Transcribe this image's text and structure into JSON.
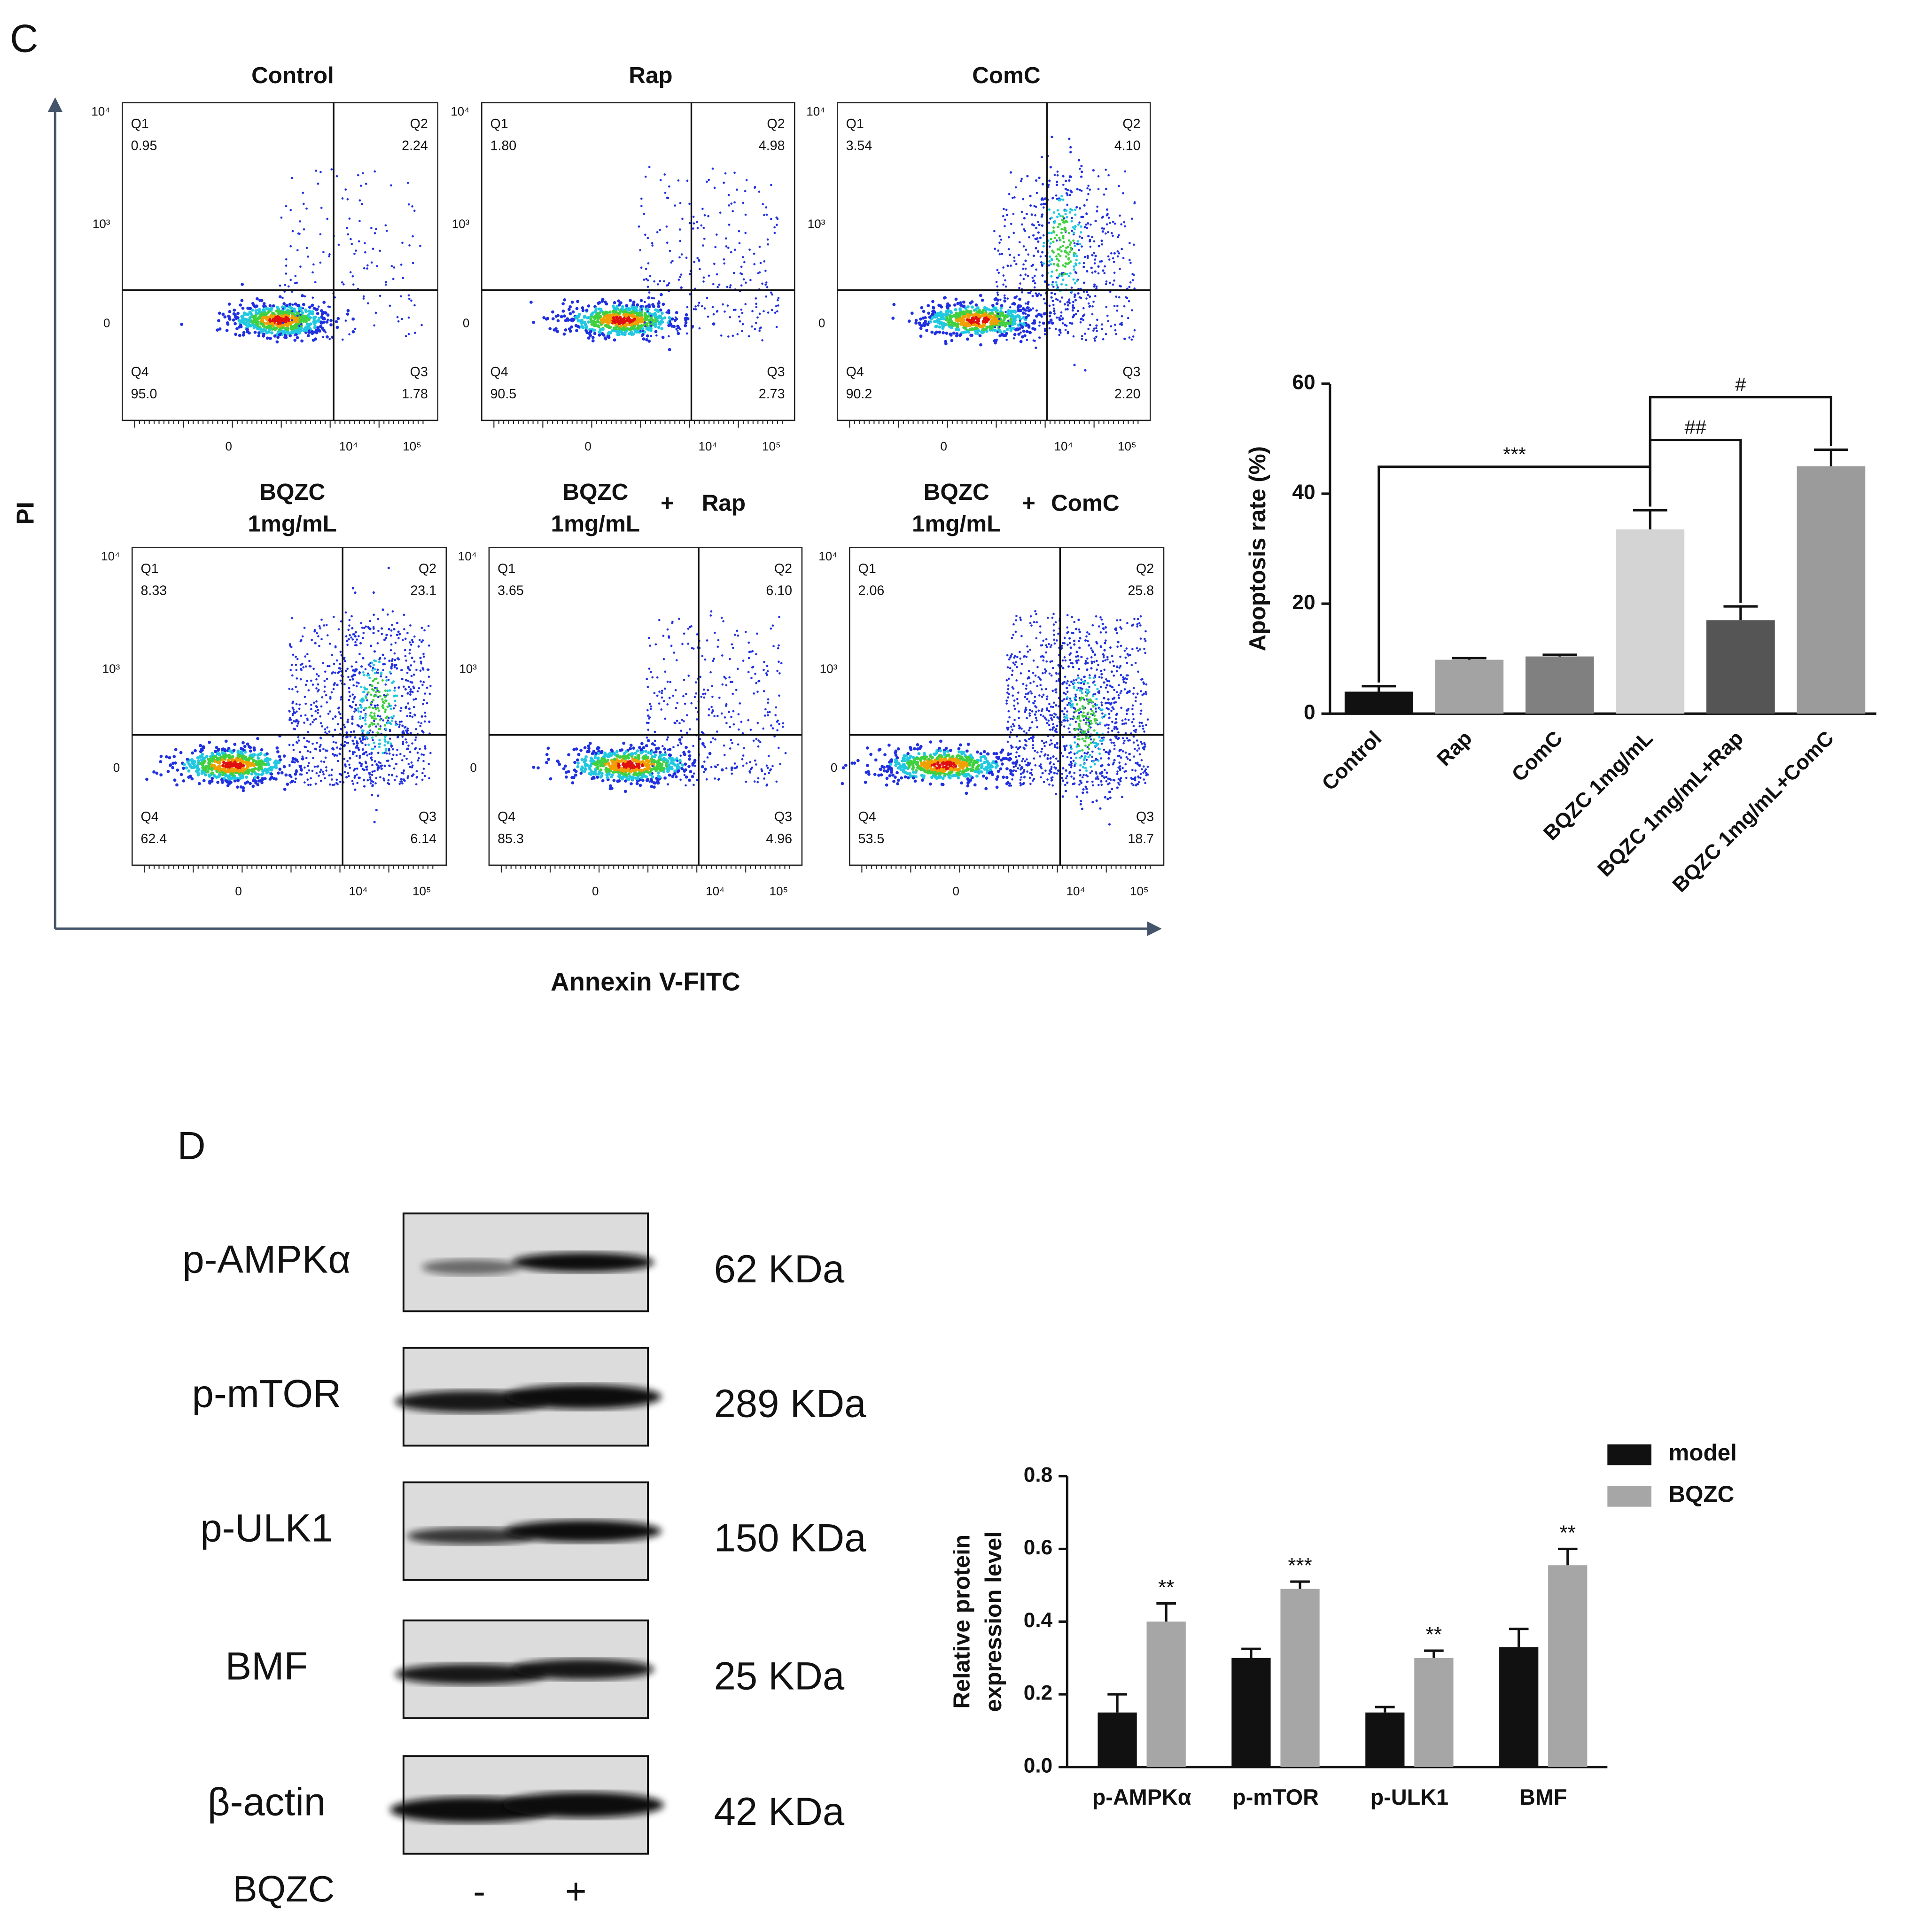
{
  "panel_c": {
    "label": "C",
    "y_axis_label": "PI",
    "x_axis_label": "Annexin V-FITC",
    "flow_y_ticks": [
      "10⁴",
      "10³",
      "0"
    ],
    "flow_x_ticks": [
      "0",
      "10⁴",
      "10⁵"
    ],
    "plots": [
      {
        "title": [
          "Control"
        ],
        "quadrants": [
          {
            "name": "Q1",
            "value": "0.95"
          },
          {
            "name": "Q2",
            "value": "2.24"
          },
          {
            "name": "Q4",
            "value": "95.0"
          },
          {
            "name": "Q3",
            "value": "1.78"
          }
        ]
      },
      {
        "title": [
          "Rap"
        ],
        "quadrants": [
          {
            "name": "Q1",
            "value": "1.80"
          },
          {
            "name": "Q2",
            "value": "4.98"
          },
          {
            "name": "Q4",
            "value": "90.5"
          },
          {
            "name": "Q3",
            "value": "2.73"
          }
        ]
      },
      {
        "title": [
          "ComC"
        ],
        "quadrants": [
          {
            "name": "Q1",
            "value": "3.54"
          },
          {
            "name": "Q2",
            "value": "4.10"
          },
          {
            "name": "Q4",
            "value": "90.2"
          },
          {
            "name": "Q3",
            "value": "2.20"
          }
        ]
      },
      {
        "title": [
          "BQZC",
          "1mg/mL"
        ],
        "quadrants": [
          {
            "name": "Q1",
            "value": "8.33"
          },
          {
            "name": "Q2",
            "value": "23.1"
          },
          {
            "name": "Q4",
            "value": "62.4"
          },
          {
            "name": "Q3",
            "value": "6.14"
          }
        ]
      },
      {
        "title": [
          "BQZC",
          "1mg/mL"
        ],
        "plus": "+",
        "agent": "Rap",
        "quadrants": [
          {
            "name": "Q1",
            "value": "3.65"
          },
          {
            "name": "Q2",
            "value": "6.10"
          },
          {
            "name": "Q4",
            "value": "85.3"
          },
          {
            "name": "Q3",
            "value": "4.96"
          }
        ]
      },
      {
        "title": [
          "BQZC",
          "1mg/mL"
        ],
        "plus": "+",
        "agent": "ComC",
        "quadrants": [
          {
            "name": "Q1",
            "value": "2.06"
          },
          {
            "name": "Q2",
            "value": "25.8"
          },
          {
            "name": "Q4",
            "value": "53.5"
          },
          {
            "name": "Q3",
            "value": "18.7"
          }
        ]
      }
    ]
  },
  "panel_d": {
    "label": "D",
    "blots": [
      {
        "protein": "p-AMPKα",
        "size": "62 KDa"
      },
      {
        "protein": "p-mTOR",
        "size": "289 KDa"
      },
      {
        "protein": "p-ULK1",
        "size": "150 KDa"
      },
      {
        "protein": "BMF",
        "size": "25 KDa"
      },
      {
        "protein": "β-actin",
        "size": "42 KDa"
      }
    ],
    "treatment": {
      "name": "BQZC",
      "lanes": [
        "-",
        "+"
      ]
    }
  },
  "chart_data": [
    {
      "type": "bar",
      "ylabel": "Apoptosis rate (%)",
      "categories": [
        "Control",
        "Rap",
        "ComC",
        "BQZC 1mg/mL",
        "BQZC 1mg/mL+Rap",
        "BQZC 1mg/mL+ComC"
      ],
      "values": [
        4,
        9.8,
        10.4,
        33.5,
        17,
        45
      ],
      "errors": [
        1,
        0.3,
        0.3,
        3.5,
        2.5,
        3
      ],
      "colors": [
        "#111111",
        "#a3a3a3",
        "#808080",
        "#d4d4d4",
        "#555555",
        "#9b9b9b"
      ],
      "ylim": [
        0,
        60
      ],
      "yticks": [
        0,
        20,
        40,
        60
      ],
      "annotations": [
        {
          "text": "***",
          "from": 0,
          "to": 3
        },
        {
          "text": "##",
          "from": 3,
          "to": 4
        },
        {
          "text": "#",
          "from": 3,
          "to": 5
        }
      ]
    },
    {
      "type": "grouped_bar",
      "ylabel": [
        "Relative protein",
        "expression level"
      ],
      "categories": [
        "p-AMPKα",
        "p-mTOR",
        "p-ULK1",
        "BMF"
      ],
      "series": [
        {
          "name": "model",
          "color": "#111111",
          "values": [
            0.15,
            0.3,
            0.15,
            0.33
          ],
          "errors": [
            0.05,
            0.025,
            0.015,
            0.05
          ]
        },
        {
          "name": "BQZC",
          "color": "#a6a6a6",
          "values": [
            0.4,
            0.49,
            0.3,
            0.555
          ],
          "errors": [
            0.05,
            0.02,
            0.02,
            0.045
          ],
          "significance": [
            "**",
            "***",
            "**",
            "**"
          ]
        }
      ],
      "ylim": [
        0,
        0.8
      ],
      "yticks": [
        {
          "value": 0,
          "label": "0.0"
        },
        {
          "value": 0.2,
          "label": "0.2"
        },
        {
          "value": 0.4,
          "label": "0.4"
        },
        {
          "value": 0.6,
          "label": "0.6"
        },
        {
          "value": 0.8,
          "label": "0.8"
        }
      ],
      "legend": "top-right"
    }
  ]
}
